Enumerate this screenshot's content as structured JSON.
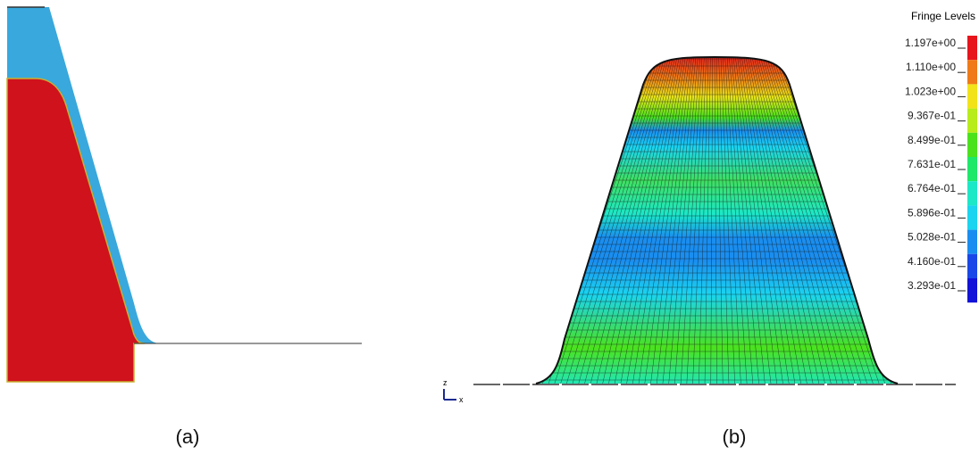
{
  "panels": [
    {
      "label": "(a)"
    },
    {
      "label": "(b)"
    }
  ],
  "legend": {
    "title": "Fringe Levels",
    "levels": [
      {
        "label": "1.197e+00",
        "color": "#e8141c"
      },
      {
        "label": "1.110e+00",
        "color": "#f07a18"
      },
      {
        "label": "1.023e+00",
        "color": "#f2e21a"
      },
      {
        "label": "9.367e-01",
        "color": "#b8ec1a"
      },
      {
        "label": "8.499e-01",
        "color": "#4be21c"
      },
      {
        "label": "7.631e-01",
        "color": "#1ee86a"
      },
      {
        "label": "6.764e-01",
        "color": "#1ce8c8"
      },
      {
        "label": "5.896e-01",
        "color": "#1ad4f0"
      },
      {
        "label": "5.028e-01",
        "color": "#1a8ef0"
      },
      {
        "label": "4.160e-01",
        "color": "#1a48e8"
      },
      {
        "label": "3.293e-01",
        "color": "#1212d8"
      }
    ]
  },
  "triad": {
    "z": "z",
    "x": "x"
  }
}
